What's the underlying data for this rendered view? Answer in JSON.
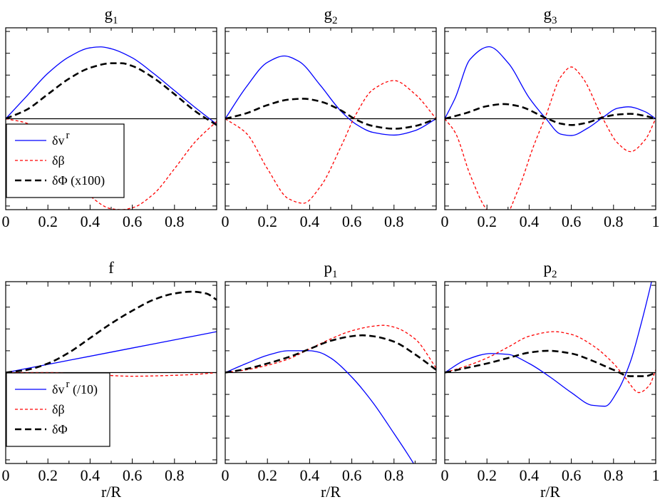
{
  "figure": {
    "x_axis_label": "r/R",
    "colors": {
      "dv": "#0000ff",
      "db": "#ff0000",
      "dphi": "#000000"
    }
  },
  "chart_data": [
    {
      "type": "line",
      "panel": "g1",
      "title": {
        "base": "g",
        "sub": "1"
      },
      "xlim": [
        0,
        1
      ],
      "ylim": [
        -1.0,
        1.0
      ],
      "xticks": [
        {
          "v": 0,
          "label": "0"
        },
        {
          "v": 0.2,
          "label": "0.2"
        },
        {
          "v": 0.4,
          "label": "0.4"
        },
        {
          "v": 0.6,
          "label": "0.6"
        },
        {
          "v": 0.8,
          "label": "0.8"
        }
      ],
      "xlabel": "",
      "grid": false,
      "legend": {
        "placement": "lower-left",
        "entries": [
          {
            "series": "dv",
            "label": "δv",
            "sup": "r"
          },
          {
            "series": "db",
            "label": "δβ"
          },
          {
            "series": "dphi",
            "label": "δΦ  (x100)"
          }
        ]
      },
      "series": [
        {
          "key": "dv",
          "name": "δv^r",
          "style": "solid",
          "color": "#0000ff",
          "x": [
            0,
            0.1,
            0.2,
            0.3,
            0.4,
            0.45,
            0.5,
            0.6,
            0.7,
            0.8,
            0.9,
            1.0
          ],
          "y": [
            0,
            0.25,
            0.5,
            0.68,
            0.78,
            0.79,
            0.77,
            0.67,
            0.5,
            0.31,
            0.12,
            -0.06
          ]
        },
        {
          "key": "db",
          "name": "δβ",
          "style": "dashed",
          "color": "#ff0000",
          "x": [
            0,
            0.1,
            0.2,
            0.3,
            0.4,
            0.5,
            0.55,
            0.6,
            0.7,
            0.8,
            0.9,
            1.0
          ],
          "y": [
            0,
            -0.05,
            -0.3,
            -0.6,
            -0.85,
            -0.99,
            -1.0,
            -0.98,
            -0.83,
            -0.55,
            -0.25,
            -0.03
          ]
        },
        {
          "key": "dphi",
          "name": "δΦ (x100)",
          "style": "longdash",
          "color": "#000000",
          "x": [
            0,
            0.1,
            0.2,
            0.3,
            0.4,
            0.5,
            0.55,
            0.6,
            0.7,
            0.8,
            0.9,
            1.0
          ],
          "y": [
            0,
            0.1,
            0.27,
            0.44,
            0.56,
            0.61,
            0.61,
            0.58,
            0.45,
            0.27,
            0.08,
            -0.07
          ]
        }
      ]
    },
    {
      "type": "line",
      "panel": "g2",
      "title": {
        "base": "g",
        "sub": "2"
      },
      "xlim": [
        0,
        1
      ],
      "ylim": [
        -1.0,
        1.0
      ],
      "xticks": [
        {
          "v": 0,
          "label": "0"
        },
        {
          "v": 0.2,
          "label": "0.2"
        },
        {
          "v": 0.4,
          "label": "0.4"
        },
        {
          "v": 0.6,
          "label": "0.6"
        },
        {
          "v": 0.8,
          "label": "0.8"
        }
      ],
      "xlabel": "",
      "grid": false,
      "series": [
        {
          "key": "dv",
          "name": "δv^r",
          "style": "solid",
          "color": "#0000ff",
          "x": [
            0,
            0.1,
            0.2,
            0.28,
            0.35,
            0.45,
            0.55,
            0.62,
            0.7,
            0.8,
            0.9,
            1.0
          ],
          "y": [
            0,
            0.35,
            0.62,
            0.69,
            0.63,
            0.37,
            0.08,
            -0.06,
            -0.15,
            -0.18,
            -0.13,
            0
          ]
        },
        {
          "key": "db",
          "name": "δβ",
          "style": "dashed",
          "color": "#ff0000",
          "x": [
            0,
            0.1,
            0.2,
            0.3,
            0.37,
            0.45,
            0.55,
            0.62,
            0.7,
            0.8,
            0.9,
            1.0
          ],
          "y": [
            0,
            -0.16,
            -0.55,
            -0.88,
            -0.93,
            -0.75,
            -0.3,
            0.05,
            0.32,
            0.42,
            0.27,
            0
          ]
        },
        {
          "key": "dphi",
          "name": "δΦ (x100)",
          "style": "longdash",
          "color": "#000000",
          "x": [
            0,
            0.1,
            0.2,
            0.3,
            0.37,
            0.45,
            0.55,
            0.62,
            0.7,
            0.8,
            0.9,
            1.0
          ],
          "y": [
            0,
            0.06,
            0.15,
            0.21,
            0.22,
            0.19,
            0.09,
            -0.01,
            -0.08,
            -0.11,
            -0.08,
            0
          ]
        }
      ]
    },
    {
      "type": "line",
      "panel": "g3",
      "title": {
        "base": "g",
        "sub": "3"
      },
      "xlim": [
        0,
        1
      ],
      "ylim": [
        -1.3,
        1.3
      ],
      "xticks": [
        {
          "v": 0,
          "label": "0"
        },
        {
          "v": 0.2,
          "label": "0.2"
        },
        {
          "v": 0.4,
          "label": "0.4"
        },
        {
          "v": 0.6,
          "label": "0.6"
        },
        {
          "v": 0.8,
          "label": "0.8"
        },
        {
          "v": 1,
          "label": "1"
        }
      ],
      "xlabel": "",
      "grid": false,
      "series": [
        {
          "key": "dv",
          "name": "δv^r",
          "style": "solid",
          "color": "#0000ff",
          "x": [
            0,
            0.05,
            0.12,
            0.21,
            0.3,
            0.4,
            0.48,
            0.55,
            0.6,
            0.68,
            0.75,
            0.82,
            0.87,
            0.95,
            1.0
          ],
          "y": [
            0,
            0.3,
            0.85,
            1.03,
            0.8,
            0.3,
            0,
            -0.22,
            -0.24,
            -0.13,
            0.02,
            0.15,
            0.17,
            0.1,
            0
          ]
        },
        {
          "key": "db",
          "name": "δβ",
          "style": "dashed",
          "color": "#ff0000",
          "x": [
            0,
            0.05,
            0.12,
            0.2,
            0.27,
            0.35,
            0.42,
            0.48,
            0.55,
            0.6,
            0.65,
            0.75,
            0.82,
            0.88,
            0.95,
            1.0
          ],
          "y": [
            0,
            -0.2,
            -0.8,
            -1.3,
            -1.45,
            -1.0,
            -0.4,
            0.05,
            0.6,
            0.74,
            0.6,
            0,
            -0.35,
            -0.47,
            -0.3,
            0
          ]
        },
        {
          "key": "dphi",
          "name": "δΦ (x100)",
          "style": "longdash",
          "color": "#000000",
          "x": [
            0,
            0.1,
            0.2,
            0.28,
            0.35,
            0.48,
            0.55,
            0.6,
            0.67,
            0.75,
            0.82,
            0.88,
            0.95,
            1.0
          ],
          "y": [
            0,
            0.08,
            0.18,
            0.21,
            0.18,
            0.01,
            -0.07,
            -0.09,
            -0.06,
            0.02,
            0.06,
            0.07,
            0.04,
            0
          ]
        }
      ]
    },
    {
      "type": "line",
      "panel": "f",
      "title": {
        "base": "f",
        "sub": ""
      },
      "xlim": [
        0,
        1
      ],
      "ylim": [
        -1.0,
        1.0
      ],
      "xticks": [
        {
          "v": 0,
          "label": "0"
        },
        {
          "v": 0.2,
          "label": "0.2"
        },
        {
          "v": 0.4,
          "label": "0.4"
        },
        {
          "v": 0.6,
          "label": "0.6"
        },
        {
          "v": 0.8,
          "label": "0.8"
        }
      ],
      "xlabel": "r/R",
      "grid": false,
      "legend": {
        "placement": "lower-left",
        "entries": [
          {
            "series": "dv",
            "label": "δv",
            "sup": "r",
            "suffix": " (/10)"
          },
          {
            "series": "db",
            "label": "δβ"
          },
          {
            "series": "dphi",
            "label": "δΦ"
          }
        ]
      },
      "series": [
        {
          "key": "dv",
          "name": "δv^r (/10)",
          "style": "solid",
          "color": "#0000ff",
          "x": [
            0,
            0.2,
            0.4,
            0.6,
            0.8,
            1.0
          ],
          "y": [
            0,
            0.09,
            0.18,
            0.27,
            0.36,
            0.45
          ]
        },
        {
          "key": "db",
          "name": "δβ",
          "style": "dashed",
          "color": "#ff0000",
          "x": [
            0,
            0.2,
            0.4,
            0.6,
            0.8,
            0.9,
            1.0
          ],
          "y": [
            0,
            0,
            -0.02,
            -0.04,
            -0.03,
            -0.02,
            0
          ]
        },
        {
          "key": "dphi",
          "name": "δΦ",
          "style": "longdash",
          "color": "#000000",
          "x": [
            0,
            0.1,
            0.2,
            0.3,
            0.4,
            0.5,
            0.6,
            0.7,
            0.8,
            0.88,
            0.95,
            1.0
          ],
          "y": [
            0,
            0.03,
            0.1,
            0.22,
            0.38,
            0.54,
            0.68,
            0.8,
            0.87,
            0.89,
            0.87,
            0.8
          ]
        }
      ]
    },
    {
      "type": "line",
      "panel": "p1",
      "title": {
        "base": "p",
        "sub": "1"
      },
      "xlim": [
        0,
        1
      ],
      "ylim": [
        -1.0,
        1.0
      ],
      "xticks": [
        {
          "v": 0,
          "label": "0"
        },
        {
          "v": 0.2,
          "label": "0.2"
        },
        {
          "v": 0.4,
          "label": "0.4"
        },
        {
          "v": 0.6,
          "label": "0.6"
        },
        {
          "v": 0.8,
          "label": "0.8"
        }
      ],
      "xlabel": "r/R",
      "grid": false,
      "series": [
        {
          "key": "dv",
          "name": "δv^r",
          "style": "solid",
          "color": "#0000ff",
          "x": [
            0,
            0.1,
            0.2,
            0.3,
            0.4,
            0.45,
            0.5,
            0.6,
            0.7,
            0.8,
            0.86,
            0.92
          ],
          "y": [
            0,
            0.1,
            0.19,
            0.24,
            0.24,
            0.22,
            0.16,
            -0.05,
            -0.33,
            -0.67,
            -0.88,
            -1.1
          ]
        },
        {
          "key": "db",
          "name": "δβ",
          "style": "dashed",
          "color": "#ff0000",
          "x": [
            0,
            0.1,
            0.2,
            0.3,
            0.4,
            0.5,
            0.6,
            0.7,
            0.75,
            0.8,
            0.9,
            1.0
          ],
          "y": [
            0,
            0.03,
            0.08,
            0.15,
            0.26,
            0.37,
            0.46,
            0.51,
            0.52,
            0.5,
            0.37,
            0.05
          ]
        },
        {
          "key": "dphi",
          "name": "δΦ",
          "style": "longdash",
          "color": "#000000",
          "x": [
            0,
            0.1,
            0.2,
            0.3,
            0.4,
            0.5,
            0.6,
            0.65,
            0.7,
            0.8,
            0.9,
            1.0
          ],
          "y": [
            0,
            0.04,
            0.1,
            0.17,
            0.26,
            0.35,
            0.4,
            0.41,
            0.4,
            0.34,
            0.2,
            0.03
          ]
        }
      ]
    },
    {
      "type": "line",
      "panel": "p2",
      "title": {
        "base": "p",
        "sub": "2"
      },
      "xlim": [
        0,
        1
      ],
      "ylim": [
        -1.0,
        1.0
      ],
      "xticks": [
        {
          "v": 0,
          "label": "0"
        },
        {
          "v": 0.2,
          "label": "0.2"
        },
        {
          "v": 0.4,
          "label": "0.4"
        },
        {
          "v": 0.6,
          "label": "0.6"
        },
        {
          "v": 0.8,
          "label": "0.8"
        },
        {
          "v": 1,
          "label": "1"
        }
      ],
      "xlabel": "r/R",
      "grid": false,
      "series": [
        {
          "key": "dv",
          "name": "δv^r",
          "style": "solid",
          "color": "#0000ff",
          "x": [
            0,
            0.1,
            0.22,
            0.3,
            0.4,
            0.5,
            0.6,
            0.7,
            0.76,
            0.82,
            0.88,
            0.93,
            0.97,
            1.0
          ],
          "y": [
            0,
            0.14,
            0.21,
            0.2,
            0.1,
            -0.05,
            -0.22,
            -0.36,
            -0.37,
            -0.2,
            0.12,
            0.53,
            0.9,
            1.2
          ]
        },
        {
          "key": "db",
          "name": "δβ",
          "style": "dashed",
          "color": "#ff0000",
          "x": [
            0,
            0.1,
            0.2,
            0.3,
            0.4,
            0.52,
            0.6,
            0.7,
            0.8,
            0.86,
            0.92,
            0.97,
            1.0
          ],
          "y": [
            0,
            0.07,
            0.16,
            0.28,
            0.4,
            0.45,
            0.42,
            0.3,
            0.1,
            -0.07,
            -0.22,
            -0.14,
            0.03
          ]
        },
        {
          "key": "dphi",
          "name": "δΦ",
          "style": "longdash",
          "color": "#000000",
          "x": [
            0,
            0.1,
            0.2,
            0.3,
            0.4,
            0.49,
            0.6,
            0.7,
            0.8,
            0.88,
            0.95,
            1.0
          ],
          "y": [
            0,
            0.05,
            0.1,
            0.16,
            0.22,
            0.24,
            0.21,
            0.13,
            0.03,
            -0.04,
            -0.04,
            0
          ]
        }
      ]
    }
  ]
}
